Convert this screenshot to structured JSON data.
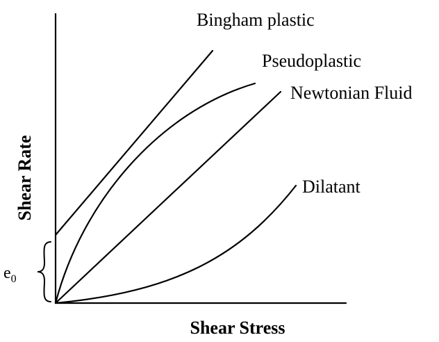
{
  "axes": {
    "x_label": "Shear Stress",
    "y_label": "Shear Rate"
  },
  "curves": {
    "bingham": "Bingham plastic",
    "pseudoplastic": "Pseudoplastic",
    "newtonian": "Newtonian Fluid",
    "dilatant": "Dilatant"
  },
  "yield_marker": {
    "base": "e",
    "subscript": "0"
  }
}
